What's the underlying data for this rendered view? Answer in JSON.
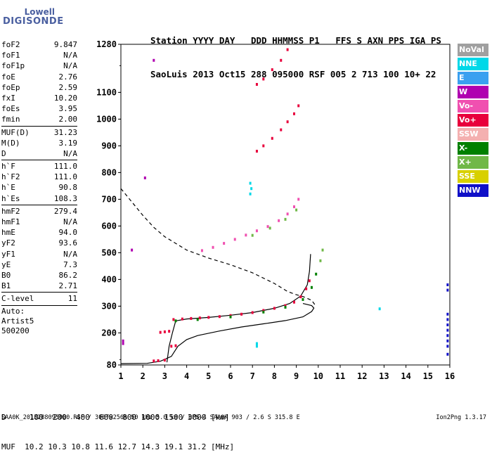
{
  "logo": {
    "line1": "Lowell",
    "line2": "DIGISONDE"
  },
  "header": {
    "line1": "Station YYYY DAY   DDD HHMMSS P1   FFS S AXN PPS IGA PS",
    "line2": "SaoLuis 2013 Oct15 288 095000 RSF 005 2 713 100 10+ 22"
  },
  "params": [
    {
      "k": "foF2",
      "v": "9.847"
    },
    {
      "k": "foF1",
      "v": "N/A"
    },
    {
      "k": "foF1p",
      "v": "N/A"
    },
    {
      "k": "foE",
      "v": "2.76"
    },
    {
      "k": "foEp",
      "v": "2.59"
    },
    {
      "k": "fxI",
      "v": "10.20"
    },
    {
      "k": "foEs",
      "v": "3.95"
    },
    {
      "k": "fmin",
      "v": "2.00"
    },
    {
      "sep": true
    },
    {
      "k": "MUF(D)",
      "v": "31.23"
    },
    {
      "k": "M(D)",
      "v": "3.19"
    },
    {
      "k": "D",
      "v": "N/A"
    },
    {
      "sep": true
    },
    {
      "k": "h`F",
      "v": "111.0"
    },
    {
      "k": "h`F2",
      "v": "111.0"
    },
    {
      "k": "h`E",
      "v": "90.8"
    },
    {
      "k": "h`Es",
      "v": "108.3"
    },
    {
      "sep": true
    },
    {
      "k": "hmF2",
      "v": "279.4"
    },
    {
      "k": "hmF1",
      "v": "N/A"
    },
    {
      "k": "hmE",
      "v": "94.0"
    },
    {
      "k": "yF2",
      "v": "93.6"
    },
    {
      "k": "yF1",
      "v": "N/A"
    },
    {
      "k": "yE",
      "v": "7.3"
    },
    {
      "k": "B0",
      "v": "86.2"
    },
    {
      "k": "B1",
      "v": "2.71"
    },
    {
      "sep": true
    },
    {
      "k": "C-level",
      "v": "11"
    },
    {
      "sep": true
    }
  ],
  "auto": [
    "Auto:",
    "Artist5",
    "500200"
  ],
  "legend": [
    {
      "label": "NoVal",
      "color": "#a0a0a0"
    },
    {
      "label": "NNE",
      "color": "#00d8e8"
    },
    {
      "label": "E",
      "color": "#3aa0f0"
    },
    {
      "label": "W",
      "color": "#b000b0"
    },
    {
      "label": "Vo-",
      "color": "#f050b0"
    },
    {
      "label": "Vo+",
      "color": "#e8003c"
    },
    {
      "label": "SSW",
      "color": "#f4b0b0"
    },
    {
      "label": "X-",
      "color": "#008000"
    },
    {
      "label": "X+",
      "color": "#70b848"
    },
    {
      "label": "SSE",
      "color": "#d8d000"
    },
    {
      "label": "NNW",
      "color": "#1010c8"
    }
  ],
  "muf_table": {
    "line1": "D     100  200  400  600  800 1000 1500 3000 [km]",
    "line2": "MUF  10.2 10.3 10.8 11.6 12.7 14.3 19.1 31.2 [MHz]"
  },
  "footer": "SAA0K_2013288095000.RSF / 300fx256h 50 kHz 5.0 km / DPS-4 SAA0K 903 / 2.6 S 315.8 E",
  "version": "Ion2Png 1.3.17",
  "chart_data": {
    "type": "scatter",
    "title": "",
    "xlabel": "",
    "ylabel": "",
    "xlim": [
      1,
      16
    ],
    "ylim": [
      80,
      1280
    ],
    "xticks": [
      1,
      2,
      3,
      4,
      5,
      6,
      7,
      8,
      9,
      10,
      11,
      12,
      13,
      14,
      15,
      16
    ],
    "yticks": [
      80,
      200,
      300,
      400,
      500,
      600,
      700,
      800,
      900,
      1000,
      1100,
      1280
    ],
    "series": [
      {
        "color": "#e8003c",
        "points": [
          [
            3.4,
            250
          ],
          [
            3.8,
            252
          ],
          [
            4.2,
            254
          ],
          [
            4.6,
            256
          ],
          [
            5.0,
            258
          ],
          [
            5.5,
            261
          ],
          [
            6.0,
            265
          ],
          [
            6.5,
            270
          ],
          [
            7.0,
            276
          ],
          [
            7.5,
            284
          ],
          [
            8.0,
            292
          ],
          [
            8.5,
            302
          ],
          [
            8.9,
            315
          ],
          [
            9.2,
            335
          ],
          [
            9.45,
            365
          ],
          [
            9.6,
            395
          ]
        ]
      },
      {
        "color": "#f050b0",
        "points": [
          [
            4.7,
            508
          ],
          [
            5.2,
            520
          ],
          [
            5.7,
            535
          ],
          [
            6.2,
            550
          ],
          [
            6.7,
            566
          ],
          [
            7.2,
            582
          ],
          [
            7.7,
            598
          ],
          [
            8.2,
            620
          ],
          [
            8.6,
            645
          ],
          [
            8.9,
            672
          ],
          [
            9.1,
            700
          ]
        ]
      },
      {
        "color": "#e8003c",
        "points": [
          [
            7.2,
            880
          ],
          [
            7.5,
            900
          ],
          [
            7.9,
            928
          ],
          [
            8.3,
            960
          ],
          [
            8.6,
            990
          ],
          [
            8.9,
            1020
          ],
          [
            9.1,
            1050
          ]
        ]
      },
      {
        "color": "#e8003c",
        "points": [
          [
            7.2,
            1130
          ],
          [
            7.5,
            1150
          ],
          [
            7.9,
            1185
          ],
          [
            8.3,
            1220
          ],
          [
            8.6,
            1260
          ]
        ]
      },
      {
        "color": "#008000",
        "points": [
          [
            3.5,
            245
          ],
          [
            4.5,
            250
          ],
          [
            6.0,
            260
          ],
          [
            7.5,
            278
          ],
          [
            8.5,
            296
          ],
          [
            9.3,
            325
          ],
          [
            9.7,
            370
          ],
          [
            9.9,
            420
          ]
        ]
      },
      {
        "color": "#70b848",
        "points": [
          [
            7.0,
            565
          ],
          [
            7.8,
            592
          ],
          [
            8.5,
            625
          ],
          [
            9.0,
            660
          ],
          [
            10.1,
            470
          ],
          [
            10.2,
            510
          ]
        ]
      },
      {
        "color": "#e8003c",
        "points": [
          [
            2.8,
            202
          ],
          [
            3.0,
            204
          ],
          [
            3.2,
            206
          ],
          [
            2.5,
            95
          ],
          [
            2.7,
            96
          ],
          [
            3.0,
            98
          ],
          [
            3.3,
            150
          ],
          [
            3.5,
            152
          ]
        ]
      },
      {
        "color": "#1010c8",
        "points": [
          [
            15.9,
            360
          ],
          [
            15.9,
            380
          ],
          [
            15.9,
            270
          ],
          [
            15.9,
            250
          ],
          [
            15.9,
            230
          ],
          [
            15.9,
            210
          ],
          [
            15.9,
            190
          ],
          [
            15.9,
            170
          ],
          [
            15.9,
            150
          ],
          [
            15.9,
            120
          ]
        ]
      },
      {
        "color": "#00d8e8",
        "points": [
          [
            6.9,
            720
          ],
          [
            6.95,
            740
          ],
          [
            6.9,
            760
          ],
          [
            7.2,
            150
          ],
          [
            7.2,
            160
          ],
          [
            12.8,
            290
          ]
        ]
      },
      {
        "color": "#b000b0",
        "points": [
          [
            1.1,
            160
          ],
          [
            1.1,
            170
          ],
          [
            1.5,
            510
          ],
          [
            2.1,
            780
          ],
          [
            2.5,
            1220
          ]
        ]
      }
    ],
    "lines": [
      {
        "name": "",
        "style": "solid",
        "points": [
          [
            1,
            85
          ],
          [
            2.2,
            86
          ],
          [
            2.8,
            94
          ],
          [
            3.3,
            112
          ],
          [
            3.6,
            150
          ],
          [
            4.0,
            175
          ],
          [
            4.5,
            190
          ],
          [
            5.5,
            207
          ],
          [
            6.5,
            222
          ],
          [
            7.5,
            234
          ],
          [
            8.5,
            246
          ],
          [
            9.3,
            260
          ],
          [
            9.7,
            280
          ],
          [
            9.8,
            293
          ],
          [
            9.7,
            302
          ],
          [
            9.3,
            310
          ]
        ]
      },
      {
        "name": "",
        "style": "solid",
        "points": [
          [
            3.1,
            90
          ],
          [
            3.2,
            150
          ],
          [
            3.35,
            200
          ],
          [
            3.5,
            245
          ],
          [
            4.0,
            252
          ],
          [
            5.0,
            258
          ],
          [
            6.0,
            266
          ],
          [
            7.0,
            276
          ],
          [
            8.0,
            292
          ],
          [
            8.7,
            310
          ],
          [
            9.2,
            338
          ],
          [
            9.5,
            380
          ],
          [
            9.6,
            430
          ],
          [
            9.65,
            495
          ]
        ]
      },
      {
        "name": "",
        "style": "dashed",
        "points": [
          [
            1,
            740
          ],
          [
            1.5,
            690
          ],
          [
            2.0,
            640
          ],
          [
            2.5,
            595
          ],
          [
            3.0,
            560
          ],
          [
            4.0,
            510
          ],
          [
            5.0,
            480
          ],
          [
            6.0,
            455
          ],
          [
            7.0,
            425
          ],
          [
            8.0,
            385
          ],
          [
            8.6,
            355
          ],
          [
            9.0,
            343
          ],
          [
            9.3,
            336
          ],
          [
            9.7,
            322
          ],
          [
            9.85,
            305
          ],
          [
            9.9,
            300
          ]
        ]
      }
    ]
  }
}
